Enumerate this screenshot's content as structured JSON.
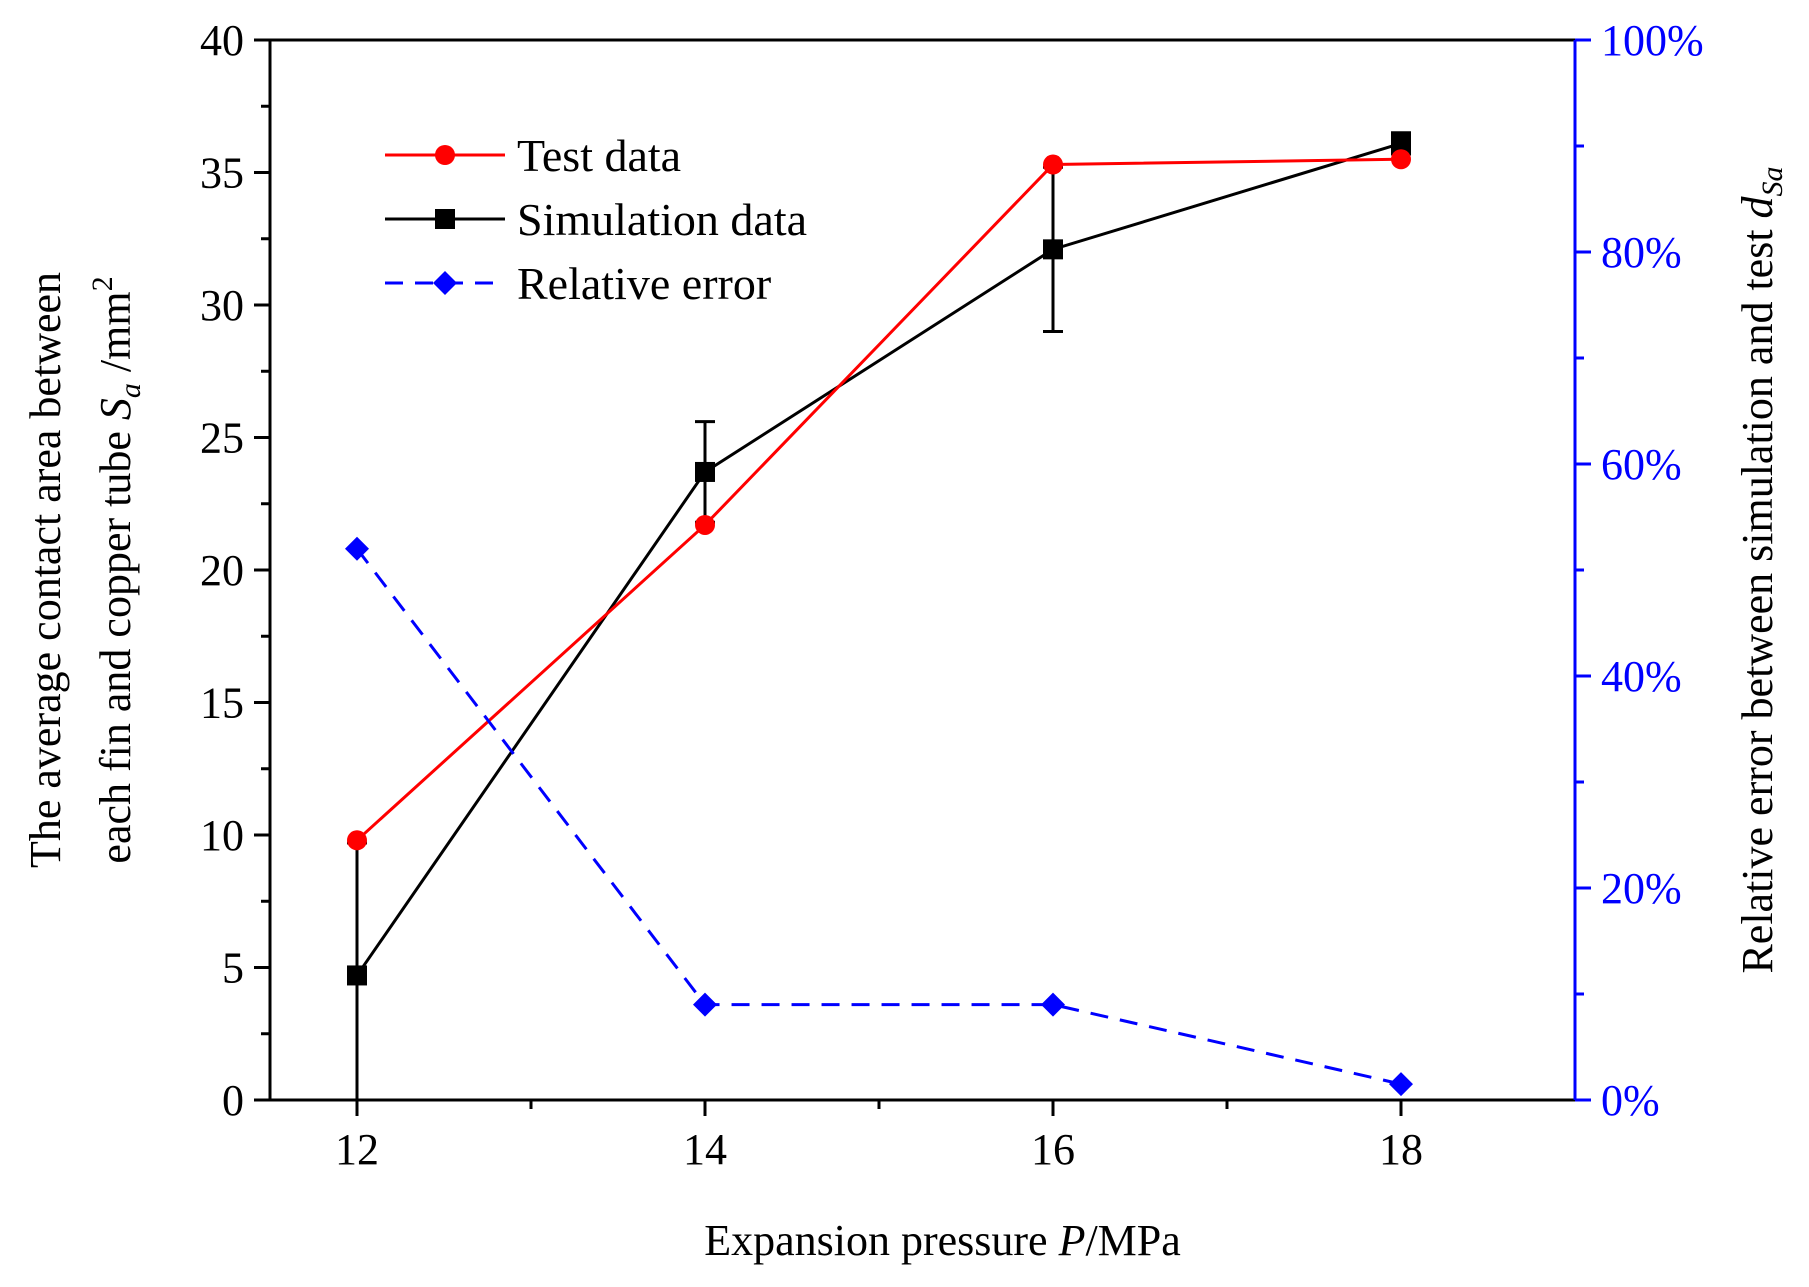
{
  "chart_data": {
    "type": "line",
    "x": [
      12,
      14,
      16,
      18
    ],
    "x_ticks": [
      "12",
      "14",
      "16",
      "18"
    ],
    "xlim": [
      11.5,
      19
    ],
    "ylim": [
      0,
      40
    ],
    "y_ticks": [
      "0",
      "5",
      "10",
      "15",
      "20",
      "25",
      "30",
      "35",
      "40"
    ],
    "y2lim": [
      0,
      100
    ],
    "y2_ticks": [
      "0%",
      "20%",
      "40%",
      "60%",
      "80%",
      "100%"
    ],
    "xlabel": {
      "main": "Expansion pressure ",
      "var": "P",
      "unit": "/MPa"
    },
    "ylabel": {
      "line1": "The average contact area between",
      "line2_prefix": "each fin and copper tube ",
      "var": "S",
      "sub": "a",
      "unit": " /mm",
      "sup": "2"
    },
    "y2label": {
      "text": "Relative error between simulation and test  ",
      "var": "d",
      "sub": "Sa"
    },
    "legend_position": "top-left",
    "series": [
      {
        "name": "Test data",
        "axis": "left",
        "color": "#ff0000",
        "marker": "circle",
        "dash": "solid",
        "values": [
          9.8,
          21.7,
          35.3,
          35.5
        ]
      },
      {
        "name": "Simulation data",
        "axis": "left",
        "color": "#000000",
        "marker": "square",
        "dash": "solid",
        "values": [
          4.7,
          23.7,
          32.1,
          36.1
        ],
        "error": [
          5.0,
          1.9,
          3.1,
          0.4
        ]
      },
      {
        "name": "Relative error",
        "axis": "right",
        "color": "#0000ff",
        "marker": "diamond",
        "dash": "dashed",
        "values": [
          52,
          9,
          9,
          1.5
        ]
      }
    ]
  }
}
